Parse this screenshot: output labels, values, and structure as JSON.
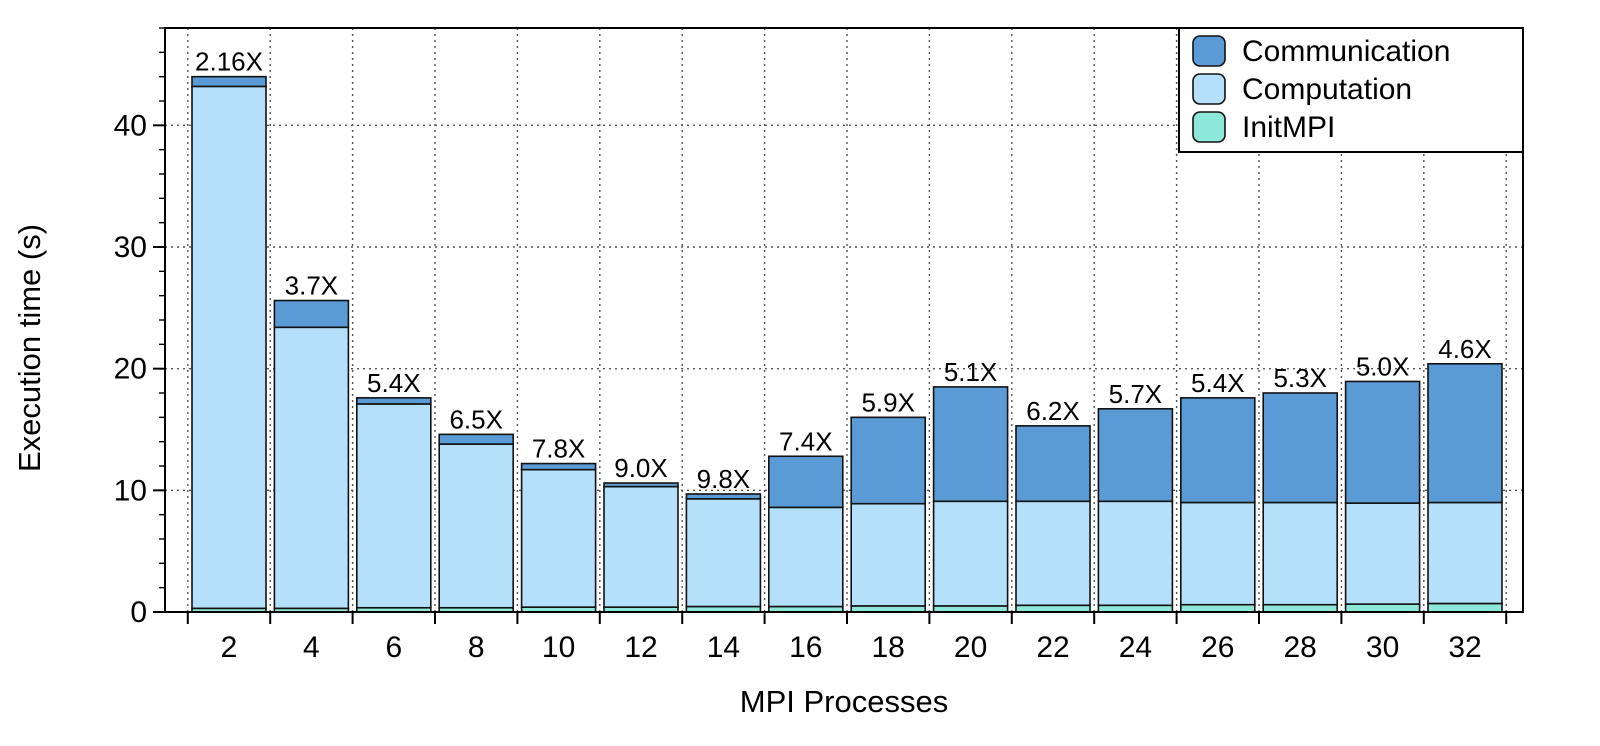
{
  "chart_data": {
    "type": "bar",
    "stacked": true,
    "title": "",
    "xlabel": "MPI Processes",
    "ylabel": "Execution time (s)",
    "ylim": [
      0,
      48
    ],
    "yticks": [
      0,
      10,
      20,
      30,
      40
    ],
    "grid": true,
    "legend_position": "top-right",
    "categories": [
      "2",
      "4",
      "6",
      "8",
      "10",
      "12",
      "14",
      "16",
      "18",
      "20",
      "22",
      "24",
      "26",
      "28",
      "30",
      "32"
    ],
    "series": [
      {
        "name": "InitMPI",
        "color": "#8ee8da",
        "values": [
          0.3,
          0.3,
          0.35,
          0.35,
          0.4,
          0.4,
          0.45,
          0.45,
          0.5,
          0.5,
          0.55,
          0.55,
          0.6,
          0.6,
          0.65,
          0.7
        ]
      },
      {
        "name": "Computation",
        "color": "#b5e0fb",
        "values": [
          42.9,
          23.1,
          16.75,
          13.45,
          11.3,
          9.9,
          8.85,
          8.15,
          8.4,
          8.6,
          8.55,
          8.55,
          8.4,
          8.4,
          8.3,
          8.3
        ]
      },
      {
        "name": "Communication",
        "color": "#5b9bd5",
        "values": [
          0.8,
          2.2,
          0.5,
          0.8,
          0.5,
          0.3,
          0.4,
          4.2,
          7.1,
          9.4,
          6.2,
          7.6,
          8.6,
          9.0,
          10.0,
          11.4
        ]
      }
    ],
    "bar_labels": [
      "2.16X",
      "3.7X",
      "5.4X",
      "6.5X",
      "7.8X",
      "9.0X",
      "9.8X",
      "7.4X",
      "5.9X",
      "5.1X",
      "6.2X",
      "5.7X",
      "5.4X",
      "5.3X",
      "5.0X",
      "4.6X"
    ],
    "legend_order": [
      "Communication",
      "Computation",
      "InitMPI"
    ]
  }
}
